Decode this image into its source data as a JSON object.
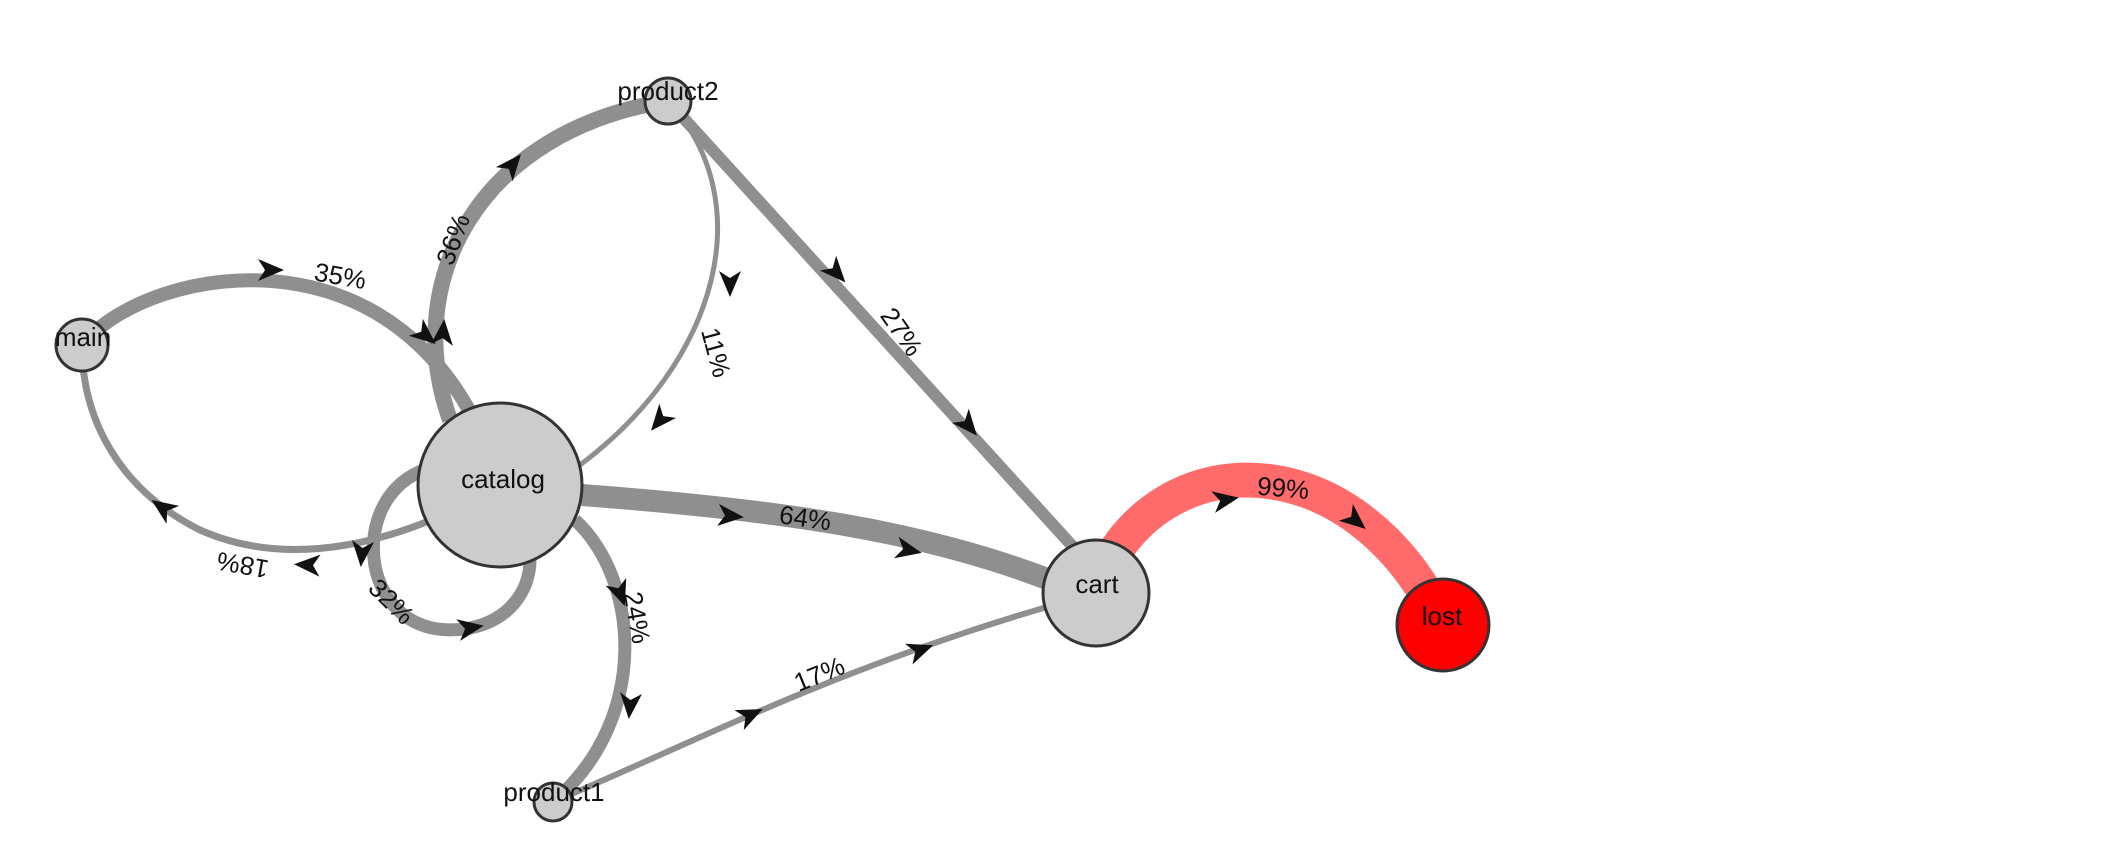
{
  "colors": {
    "edge": "#8f8f8f",
    "edge_highlight": "#ff6b6b",
    "node_fill": "#cccccc",
    "node_highlight": "#ff0000",
    "node_stroke": "#333333",
    "arrow": "#111111"
  },
  "nodes": [
    {
      "id": "main",
      "label": "main"
    },
    {
      "id": "catalog",
      "label": "catalog"
    },
    {
      "id": "product2",
      "label": "product2"
    },
    {
      "id": "product1",
      "label": "product1"
    },
    {
      "id": "cart",
      "label": "cart"
    },
    {
      "id": "lost",
      "label": "lost",
      "highlight": true
    }
  ],
  "edges": [
    {
      "from": "main",
      "to": "catalog",
      "label": "35%"
    },
    {
      "from": "catalog",
      "to": "main",
      "label": "18%"
    },
    {
      "from": "catalog",
      "to": "product2",
      "label": "36%"
    },
    {
      "from": "product2",
      "to": "catalog",
      "label": "11%"
    },
    {
      "from": "product2",
      "to": "cart",
      "label": "27%"
    },
    {
      "from": "catalog",
      "to": "cart",
      "label": "64%"
    },
    {
      "from": "catalog",
      "to": "catalog",
      "label": "32%"
    },
    {
      "from": "catalog",
      "to": "product1",
      "label": "24%"
    },
    {
      "from": "product1",
      "to": "cart",
      "label": "17%"
    },
    {
      "from": "cart",
      "to": "lost",
      "label": "99%",
      "highlight": true
    }
  ]
}
